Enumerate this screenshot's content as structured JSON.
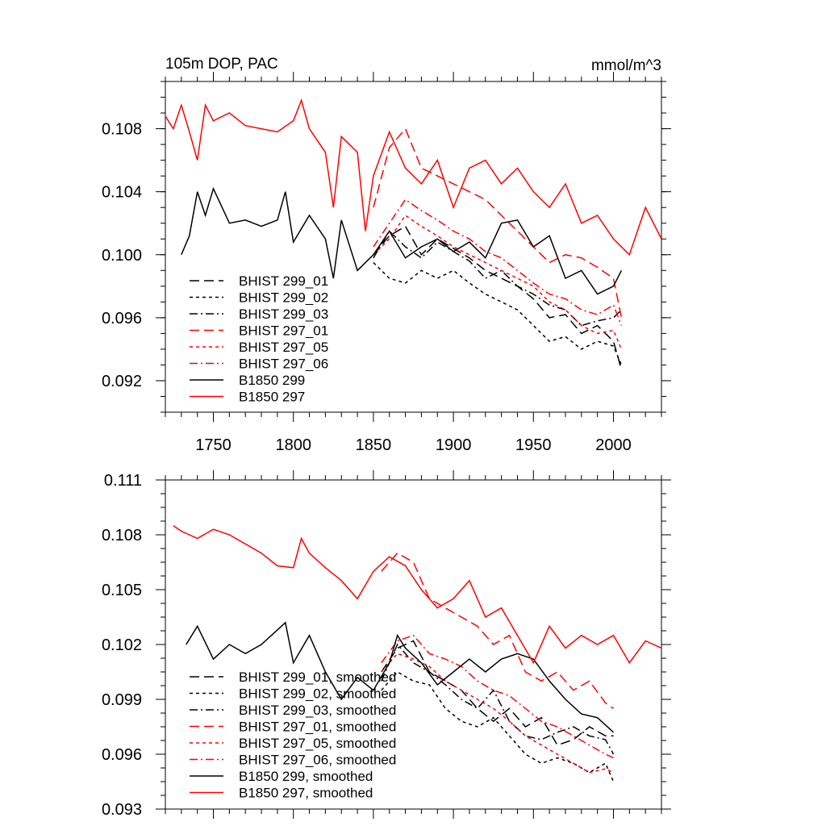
{
  "colors": {
    "black": "#000000",
    "red": "#ff0000"
  },
  "chart_data": [
    {
      "type": "line",
      "title": "105m DOP, PAC",
      "units": "mmol/m^3",
      "xlabel": "",
      "ylabel": "",
      "xlim": [
        1720,
        2030
      ],
      "ylim": [
        0.09,
        0.111
      ],
      "x_ticks": [
        1750,
        1800,
        1850,
        1900,
        1950,
        2000
      ],
      "x_tick_labels": [
        "1750",
        "1800",
        "1850",
        "1900",
        "1950",
        "2000"
      ],
      "y_ticks": [
        0.092,
        0.096,
        0.1,
        0.104,
        0.108
      ],
      "y_tick_labels": [
        "0.092",
        "0.096",
        "0.100",
        "0.104",
        "0.108"
      ],
      "legend_position": "bottom-left",
      "series": [
        {
          "name": "BHIST 299_01",
          "color": "#000000",
          "dash": "long-dash",
          "x": [
            1850,
            1860,
            1870,
            1880,
            1890,
            1900,
            1910,
            1920,
            1930,
            1940,
            1950,
            1960,
            1970,
            1980,
            1990,
            2000,
            2005
          ],
          "y": [
            0.1,
            0.1012,
            0.1018,
            0.1,
            0.101,
            0.1004,
            0.0998,
            0.099,
            0.0985,
            0.098,
            0.0972,
            0.096,
            0.0962,
            0.095,
            0.0955,
            0.0945,
            0.0927
          ]
        },
        {
          "name": "BHIST 299_02",
          "color": "#000000",
          "dash": "short-dash",
          "x": [
            1850,
            1860,
            1870,
            1880,
            1890,
            1900,
            1910,
            1920,
            1930,
            1940,
            1950,
            1960,
            1970,
            1980,
            1990,
            2000,
            2005
          ],
          "y": [
            0.0995,
            0.0985,
            0.0982,
            0.099,
            0.0985,
            0.099,
            0.0982,
            0.0975,
            0.097,
            0.0965,
            0.0955,
            0.0945,
            0.0948,
            0.094,
            0.0945,
            0.0942,
            0.093
          ]
        },
        {
          "name": "BHIST 299_03",
          "color": "#000000",
          "dash": "dash-dot",
          "x": [
            1850,
            1860,
            1870,
            1880,
            1890,
            1900,
            1910,
            1920,
            1930,
            1940,
            1950,
            1960,
            1970,
            1980,
            1990,
            2000,
            2005
          ],
          "y": [
            0.0998,
            0.1015,
            0.1005,
            0.0998,
            0.1008,
            0.1002,
            0.0996,
            0.0985,
            0.099,
            0.098,
            0.0975,
            0.0968,
            0.0965,
            0.0955,
            0.0958,
            0.096,
            0.0965
          ]
        },
        {
          "name": "BHIST 297_01",
          "color": "#ff0000",
          "dash": "long-dash",
          "x": [
            1850,
            1860,
            1870,
            1880,
            1890,
            1900,
            1910,
            1920,
            1930,
            1940,
            1950,
            1960,
            1970,
            1980,
            1990,
            2000,
            2005
          ],
          "y": [
            0.103,
            0.1068,
            0.108,
            0.1055,
            0.105,
            0.1045,
            0.104,
            0.1035,
            0.1025,
            0.1015,
            0.1005,
            0.0995,
            0.1,
            0.0998,
            0.0992,
            0.0985,
            0.096
          ]
        },
        {
          "name": "BHIST 297_05",
          "color": "#ff0000",
          "dash": "short-dash",
          "x": [
            1850,
            1860,
            1870,
            1880,
            1890,
            1900,
            1910,
            1920,
            1930,
            1940,
            1950,
            1960,
            1970,
            1980,
            1990,
            2000,
            2005
          ],
          "y": [
            0.1,
            0.101,
            0.1025,
            0.1018,
            0.1012,
            0.1005,
            0.1,
            0.0995,
            0.099,
            0.0985,
            0.098,
            0.097,
            0.0965,
            0.0955,
            0.095,
            0.0952,
            0.094
          ]
        },
        {
          "name": "BHIST 297_06",
          "color": "#ff0000",
          "dash": "dash-dot",
          "x": [
            1850,
            1860,
            1870,
            1880,
            1890,
            1900,
            1910,
            1920,
            1930,
            1940,
            1950,
            1960,
            1970,
            1980,
            1990,
            2000,
            2005
          ],
          "y": [
            0.1005,
            0.102,
            0.1035,
            0.1028,
            0.1022,
            0.1015,
            0.101,
            0.1002,
            0.0998,
            0.099,
            0.0982,
            0.0975,
            0.0972,
            0.0965,
            0.0962,
            0.0968,
            0.0955
          ]
        },
        {
          "name": "B1850 299",
          "color": "#000000",
          "dash": "solid",
          "x": [
            1730,
            1735,
            1740,
            1745,
            1750,
            1760,
            1770,
            1780,
            1790,
            1795,
            1800,
            1810,
            1820,
            1825,
            1830,
            1840,
            1850,
            1860,
            1870,
            1880,
            1890,
            1900,
            1910,
            1920,
            1930,
            1940,
            1950,
            1960,
            1970,
            1980,
            1990,
            2000,
            2005
          ],
          "y": [
            0.1,
            0.1012,
            0.104,
            0.1025,
            0.1042,
            0.102,
            0.1022,
            0.1018,
            0.1022,
            0.104,
            0.1008,
            0.1025,
            0.101,
            0.0985,
            0.1022,
            0.099,
            0.1,
            0.1015,
            0.0998,
            0.1005,
            0.101,
            0.1002,
            0.1008,
            0.0998,
            0.102,
            0.1022,
            0.1005,
            0.1012,
            0.0985,
            0.099,
            0.0975,
            0.098,
            0.099
          ]
        },
        {
          "name": "B1850 297",
          "color": "#ff0000",
          "dash": "solid",
          "x": [
            1720,
            1725,
            1730,
            1735,
            1740,
            1745,
            1750,
            1760,
            1770,
            1780,
            1790,
            1800,
            1805,
            1810,
            1820,
            1825,
            1830,
            1840,
            1845,
            1850,
            1860,
            1870,
            1880,
            1890,
            1900,
            1910,
            1920,
            1930,
            1940,
            1950,
            1960,
            1970,
            1980,
            1990,
            2000,
            2010,
            2020,
            2030
          ],
          "y": [
            0.1088,
            0.108,
            0.1095,
            0.1078,
            0.106,
            0.1095,
            0.1085,
            0.109,
            0.1082,
            0.108,
            0.1078,
            0.1085,
            0.1098,
            0.108,
            0.1065,
            0.103,
            0.1075,
            0.1065,
            0.1015,
            0.105,
            0.1078,
            0.1055,
            0.1045,
            0.106,
            0.103,
            0.1055,
            0.106,
            0.1045,
            0.1055,
            0.104,
            0.103,
            0.1045,
            0.102,
            0.1025,
            0.101,
            0.1,
            0.103,
            0.101
          ]
        }
      ]
    },
    {
      "type": "line",
      "title": "",
      "xlabel": "",
      "ylabel": "",
      "xlim": [
        1720,
        2030
      ],
      "ylim": [
        0.093,
        0.111
      ],
      "x_ticks": [
        1750,
        1800,
        1850,
        1900,
        1950,
        2000
      ],
      "y_ticks": [
        0.093,
        0.096,
        0.099,
        0.102,
        0.105,
        0.108,
        0.111
      ],
      "y_tick_labels": [
        "0.093",
        "0.096",
        "0.099",
        "0.102",
        "0.105",
        "0.108",
        "0.111"
      ],
      "legend_position": "bottom-left",
      "series": [
        {
          "name": "BHIST 299_01, smoothed",
          "color": "#000000",
          "dash": "long-dash",
          "x": [
            1855,
            1865,
            1875,
            1885,
            1895,
            1905,
            1915,
            1925,
            1935,
            1945,
            1955,
            1965,
            1975,
            1985,
            1995,
            2000
          ],
          "y": [
            0.1005,
            0.1018,
            0.1022,
            0.1005,
            0.1,
            0.0995,
            0.0985,
            0.0978,
            0.0985,
            0.0975,
            0.098,
            0.0965,
            0.0968,
            0.0975,
            0.097,
            0.097
          ]
        },
        {
          "name": "BHIST 299_02, smoothed",
          "color": "#000000",
          "dash": "short-dash",
          "x": [
            1855,
            1865,
            1875,
            1885,
            1895,
            1905,
            1915,
            1925,
            1935,
            1945,
            1955,
            1965,
            1975,
            1985,
            1995,
            2000
          ],
          "y": [
            0.0995,
            0.1005,
            0.1,
            0.0998,
            0.0985,
            0.0978,
            0.0975,
            0.098,
            0.097,
            0.096,
            0.0955,
            0.0958,
            0.0955,
            0.095,
            0.0955,
            0.0945
          ]
        },
        {
          "name": "BHIST 299_03, smoothed",
          "color": "#000000",
          "dash": "dash-dot",
          "x": [
            1855,
            1865,
            1875,
            1885,
            1895,
            1905,
            1915,
            1925,
            1935,
            1945,
            1955,
            1965,
            1975,
            1985,
            1995,
            2000
          ],
          "y": [
            0.1,
            0.102,
            0.101,
            0.1005,
            0.0998,
            0.099,
            0.0985,
            0.0995,
            0.0978,
            0.097,
            0.0968,
            0.0972,
            0.0975,
            0.097,
            0.0968,
            0.096
          ]
        },
        {
          "name": "BHIST 297_01, smoothed",
          "color": "#ff0000",
          "dash": "long-dash",
          "x": [
            1855,
            1865,
            1875,
            1885,
            1895,
            1905,
            1915,
            1925,
            1935,
            1945,
            1955,
            1965,
            1975,
            1985,
            1995,
            2000
          ],
          "y": [
            0.106,
            0.107,
            0.1065,
            0.1045,
            0.104,
            0.1035,
            0.103,
            0.102,
            0.1025,
            0.1005,
            0.1,
            0.1005,
            0.0995,
            0.1,
            0.0988,
            0.0985
          ]
        },
        {
          "name": "BHIST 297_05, smoothed",
          "color": "#ff0000",
          "dash": "short-dash",
          "x": [
            1855,
            1865,
            1875,
            1885,
            1895,
            1905,
            1915,
            1925,
            1935,
            1945,
            1955,
            1965,
            1975,
            1985,
            1995,
            2000
          ],
          "y": [
            0.1005,
            0.1015,
            0.1012,
            0.1008,
            0.1,
            0.0995,
            0.099,
            0.0985,
            0.0978,
            0.097,
            0.0965,
            0.096,
            0.0955,
            0.095,
            0.0952,
            0.095
          ]
        },
        {
          "name": "BHIST 297_06, smoothed",
          "color": "#ff0000",
          "dash": "dash-dot",
          "x": [
            1855,
            1865,
            1875,
            1885,
            1895,
            1905,
            1915,
            1925,
            1935,
            1945,
            1955,
            1965,
            1975,
            1985,
            1995,
            2000
          ],
          "y": [
            0.101,
            0.1022,
            0.1025,
            0.1015,
            0.1012,
            0.1008,
            0.1,
            0.0995,
            0.0992,
            0.0985,
            0.0978,
            0.0975,
            0.097,
            0.0965,
            0.096,
            0.0958
          ]
        },
        {
          "name": "B1850 299, smoothed",
          "color": "#000000",
          "dash": "solid",
          "x": [
            1733,
            1740,
            1750,
            1760,
            1770,
            1780,
            1790,
            1795,
            1800,
            1810,
            1820,
            1830,
            1840,
            1850,
            1860,
            1865,
            1870,
            1880,
            1890,
            1900,
            1910,
            1920,
            1930,
            1940,
            1950,
            1960,
            1970,
            1980,
            1990,
            2000
          ],
          "y": [
            0.102,
            0.103,
            0.1012,
            0.102,
            0.1015,
            0.102,
            0.1028,
            0.1032,
            0.101,
            0.1025,
            0.1005,
            0.099,
            0.1002,
            0.0995,
            0.101,
            0.1025,
            0.1018,
            0.101,
            0.0998,
            0.1005,
            0.1012,
            0.1005,
            0.1012,
            0.1015,
            0.1012,
            0.1,
            0.099,
            0.0982,
            0.098,
            0.0972
          ]
        },
        {
          "name": "B1850 297, smoothed",
          "color": "#ff0000",
          "dash": "solid",
          "x": [
            1725,
            1730,
            1740,
            1750,
            1760,
            1770,
            1780,
            1790,
            1800,
            1805,
            1810,
            1820,
            1830,
            1840,
            1850,
            1860,
            1870,
            1880,
            1890,
            1900,
            1910,
            1920,
            1930,
            1940,
            1950,
            1960,
            1970,
            1980,
            1990,
            2000,
            2010,
            2020,
            2030
          ],
          "y": [
            0.1085,
            0.1082,
            0.1078,
            0.1083,
            0.108,
            0.1075,
            0.107,
            0.1063,
            0.1062,
            0.1078,
            0.107,
            0.1062,
            0.1055,
            0.1045,
            0.106,
            0.1068,
            0.1063,
            0.105,
            0.104,
            0.1045,
            0.1055,
            0.1035,
            0.104,
            0.1025,
            0.101,
            0.103,
            0.1018,
            0.1025,
            0.102,
            0.1025,
            0.101,
            0.1022,
            0.1018
          ]
        }
      ]
    }
  ]
}
